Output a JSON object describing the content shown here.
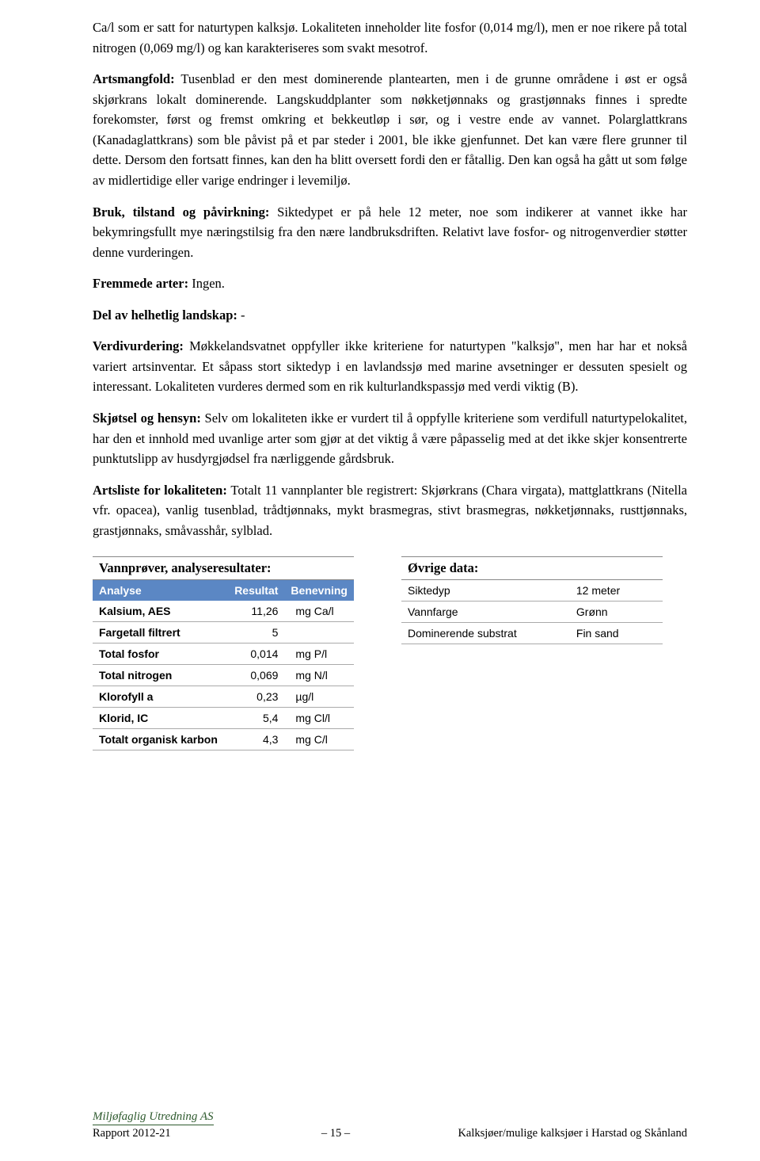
{
  "paragraphs": {
    "p1": "Ca/l som er satt for naturtypen kalksjø. Lokaliteten inneholder lite fosfor (0,014 mg/l), men er noe rikere på total nitrogen (0,069 mg/l) og kan karakteriseres som svakt mesotrof.",
    "p2_label": "Artsmangfold:",
    "p2": " Tusenblad er den mest dominerende plantearten, men i de grunne områdene i øst er også skjørkrans lokalt dominerende. Langskuddplanter som nøkketjønnaks og grastjønnaks finnes i spredte forekomster, først og fremst omkring et bekkeutløp i sør, og i vestre ende av vannet. Polarglattkrans (Kanadaglattkrans) som ble påvist på et par steder i 2001, ble ikke gjenfunnet. Det kan være flere grunner til dette. Dersom den fortsatt finnes, kan den ha blitt oversett fordi den er fåtallig. Den kan også ha gått ut som følge av midlertidige eller varige endringer i levemiljø.",
    "p3_label": "Bruk, tilstand og påvirkning:",
    "p3": " Siktedypet er på hele 12 meter, noe som indikerer at vannet ikke har bekymringsfullt mye næringstilsig fra den nære landbruksdriften. Relativt lave fosfor- og nitrogenverdier støtter denne vurderingen.",
    "p4_label": "Fremmede arter:",
    "p4": " Ingen.",
    "p5_label": "Del av helhetlig landskap:",
    "p5": " -",
    "p6_label": "Verdivurdering:",
    "p6": " Møkkelandsvatnet oppfyller ikke kriteriene for naturtypen \"kalksjø\", men har har et nokså variert artsinventar. Et såpass stort siktedyp i en lavlandssjø med marine avsetninger er dessuten spesielt og interessant. Lokaliteten vurderes dermed som en rik kulturlandkspassjø med verdi viktig (B).",
    "p7_label": "Skjøtsel og hensyn:",
    "p7": " Selv om lokaliteten ikke er vurdert til å oppfylle kriteriene som verdifull naturtypelokalitet, har den et innhold med uvanlige arter som gjør at det viktig å være påpasselig med at det ikke skjer konsentrerte punktutslipp av husdyrgjødsel fra nærliggende gårdsbruk.",
    "p8_label": "Artsliste for lokaliteten:",
    "p8": " Totalt 11 vannplanter ble registrert: Skjørkrans (Chara virgata), mattglattkrans (Nitella vfr. opacea), vanlig tusenblad, trådtjønnaks, mykt brasmegras, stivt brasmegras, nøkketjønnaks, rusttjønnaks, grastjønnaks, småvasshår, sylblad."
  },
  "leftTable": {
    "title": "Vannprøver, analyseresultater:",
    "headers": [
      "Analyse",
      "Resultat",
      "Benevning"
    ],
    "header_bg": "#5b87c4",
    "header_fg": "#ffffff",
    "rows": [
      [
        "Kalsium, AES",
        "11,26",
        "mg Ca/l"
      ],
      [
        "Fargetall filtrert",
        "5",
        ""
      ],
      [
        "Total fosfor",
        "0,014",
        "mg P/l"
      ],
      [
        "Total nitrogen",
        "0,069",
        "mg N/l"
      ],
      [
        "Klorofyll a",
        "0,23",
        "µg/l"
      ],
      [
        "Klorid, IC",
        "5,4",
        "mg Cl/l"
      ],
      [
        "Totalt organisk karbon",
        "4,3",
        "mg C/l"
      ]
    ]
  },
  "rightTable": {
    "title": "Øvrige data:",
    "rows": [
      [
        "Siktedyp",
        "12 meter"
      ],
      [
        "Vannfarge",
        "Grønn"
      ],
      [
        "Dominerende substrat",
        "Fin sand"
      ]
    ]
  },
  "footer": {
    "company": "Miljøfaglig Utredning AS",
    "report": "Rapport 2012-21",
    "page": "– 15 –",
    "doctitle": "Kalksjøer/mulige kalksjøer i Harstad og Skånland"
  }
}
